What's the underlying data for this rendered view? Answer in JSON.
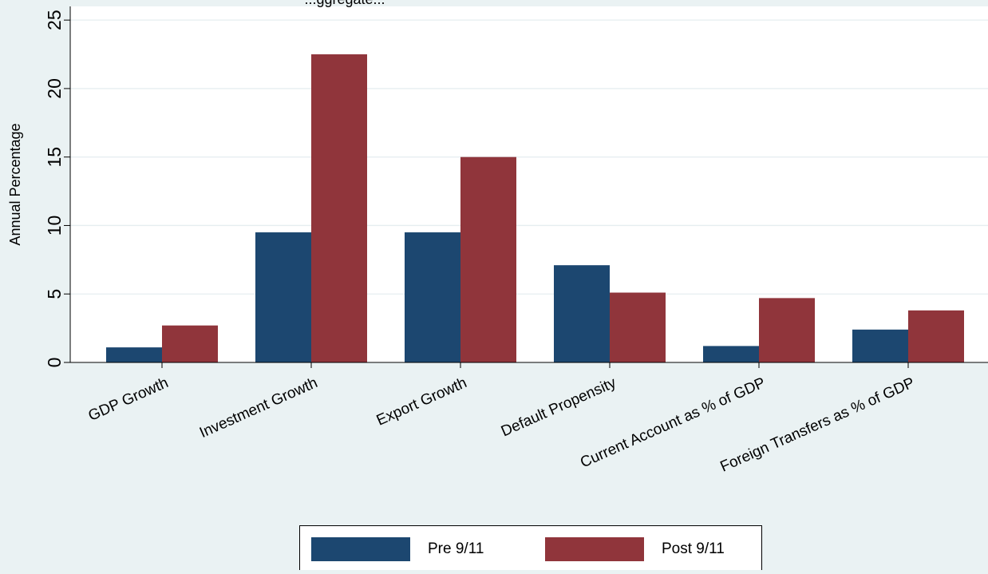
{
  "chart_data": {
    "type": "bar",
    "title": "...ggregate...",
    "ylabel": "Annual Percentage",
    "xlabel": "",
    "ylim": [
      0,
      26
    ],
    "yticks": [
      0,
      5,
      10,
      15,
      20,
      25
    ],
    "grid": true,
    "legend_position": "bottom",
    "categories": [
      "GDP Growth",
      "Investment Growth",
      "Export Growth",
      "Default Propensity",
      "Current Account as % of GDP",
      "Foreign Transfers as % of GDP"
    ],
    "series": [
      {
        "name": "Pre 9/11",
        "color": "#1c4770",
        "values": [
          1.1,
          9.5,
          9.5,
          7.1,
          1.2,
          2.4
        ]
      },
      {
        "name": "Post 9/11",
        "color": "#90353b",
        "values": [
          2.7,
          22.5,
          15.0,
          5.1,
          4.7,
          3.8
        ]
      }
    ]
  }
}
